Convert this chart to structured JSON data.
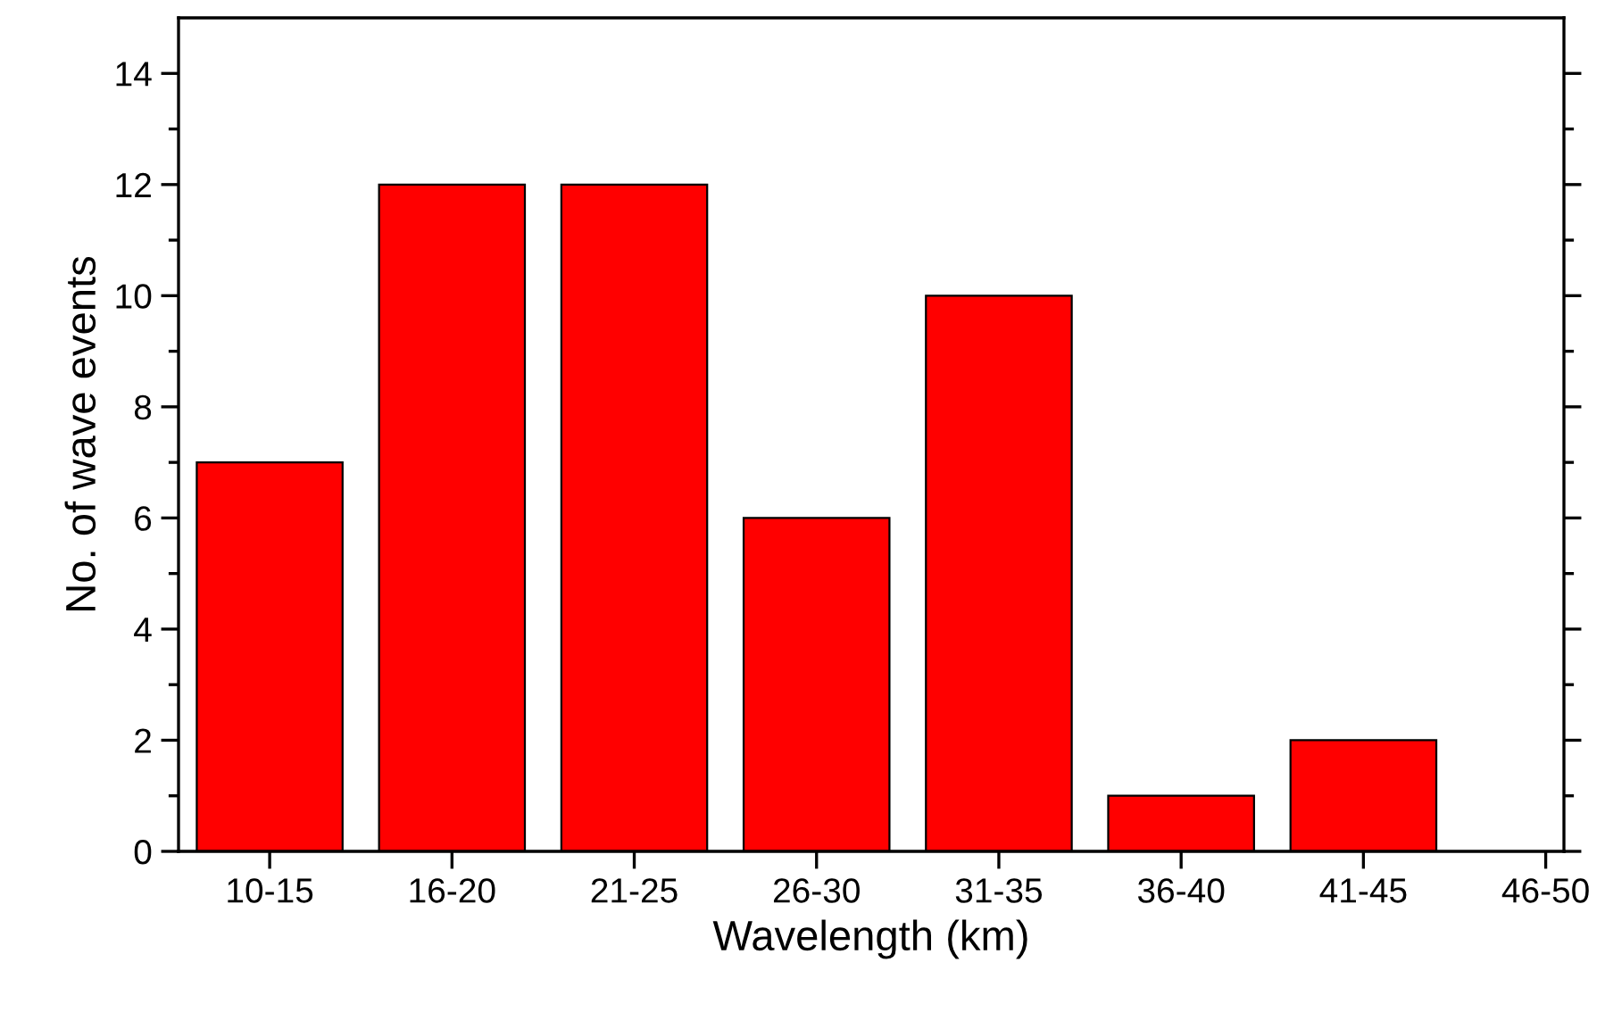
{
  "chart_data": {
    "type": "bar",
    "xlabel": "Wavelength (km)",
    "ylabel": "No. of wave events",
    "categories": [
      "10-15",
      "16-20",
      "21-25",
      "26-30",
      "31-35",
      "36-40",
      "41-45",
      "46-50"
    ],
    "values": [
      7,
      12,
      12,
      6,
      10,
      1,
      2,
      0
    ],
    "color": "#ff0000",
    "ylim": [
      0,
      15
    ],
    "yticks": [
      0,
      {
        "value": 1,
        "label": null
      },
      2,
      {
        "value": 3,
        "label": null
      },
      4,
      {
        "value": 5,
        "label": null
      },
      6,
      {
        "value": 7,
        "label": null
      },
      8,
      {
        "value": 9,
        "label": null
      },
      10,
      {
        "value": 11,
        "label": null
      },
      12,
      {
        "value": 13,
        "label": null
      },
      14
    ],
    "grid": false,
    "legend": false
  }
}
